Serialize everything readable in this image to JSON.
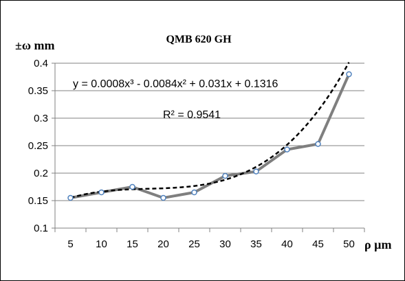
{
  "chart_data": {
    "type": "line",
    "title": "QMB 620 GH",
    "ylabel": "±ω mm",
    "xlabel": "ρ µm",
    "categories": [
      "5",
      "10",
      "15",
      "20",
      "25",
      "30",
      "35",
      "40",
      "45",
      "50"
    ],
    "y_ticks": [
      "0.1",
      "0.15",
      "0.2",
      "0.25",
      "0.3",
      "0.35",
      "0.4"
    ],
    "ylim": [
      0.1,
      0.4
    ],
    "grid": true,
    "legend": "none",
    "series": [
      {
        "values": [
          0.155,
          0.165,
          0.175,
          0.155,
          0.165,
          0.195,
          0.203,
          0.243,
          0.253,
          0.38
        ],
        "color": "#7f7f7f",
        "marker_color": "#4f81bd"
      }
    ],
    "trendline": {
      "type": "polynomial",
      "order": 3,
      "coefficients": [
        0.0008,
        -0.0084,
        0.031,
        0.1316
      ],
      "color": "#000000",
      "style": "dashed"
    },
    "annotations": [
      "y = 0.0008x³ - 0.0084x² + 0.031x + 0.1316",
      "R² = 0.9541"
    ]
  }
}
